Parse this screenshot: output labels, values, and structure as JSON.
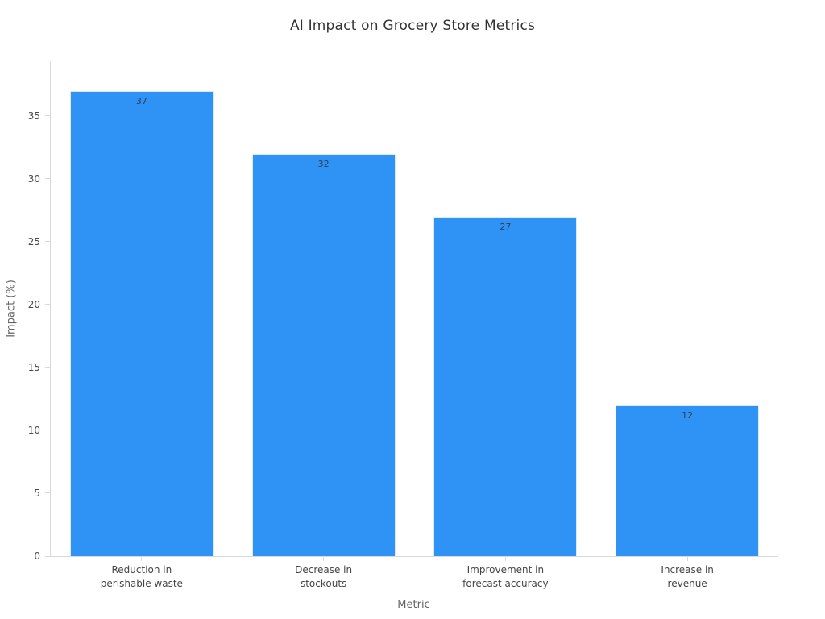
{
  "chart_data": {
    "type": "bar",
    "title": "AI Impact on Grocery Store Metrics",
    "xlabel": "Metric",
    "ylabel": "Impact (%)",
    "categories": [
      "Reduction in\nperishable waste",
      "Decrease in\nstockouts",
      "Improvement in\nforecast accuracy",
      "Increase in\nrevenue"
    ],
    "values": [
      37,
      32,
      27,
      12
    ],
    "bar_value_labels": [
      "37",
      "32",
      "27",
      "12"
    ],
    "yticks": [
      0,
      5,
      10,
      15,
      20,
      25,
      30,
      35
    ],
    "ylim": [
      0,
      39.35
    ],
    "grid": false,
    "legend_position": "none",
    "colors": {
      "bar": "#2e93f5",
      "bar_edge": "#dcebfa",
      "axis_line": "#d9d9d9",
      "tick_label": "#4a4a4a",
      "bar_label": "#2a3f5f",
      "title": "#333333",
      "axis_title": "#666666",
      "background": "#ffffff"
    }
  }
}
